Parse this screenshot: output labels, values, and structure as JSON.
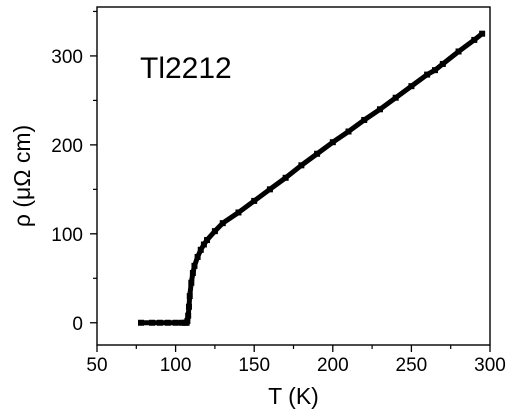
{
  "chart_data": {
    "type": "scatter",
    "title": "",
    "xlabel": "T (K)",
    "ylabel": "ρ (μΩ cm)",
    "xlim": [
      50,
      300
    ],
    "ylim": [
      -25,
      355
    ],
    "xticks": [
      50,
      100,
      150,
      200,
      250,
      300
    ],
    "yticks": [
      0,
      100,
      200,
      300
    ],
    "xtick_labels": [
      "50",
      "100",
      "150",
      "200",
      "250",
      "300"
    ],
    "ytick_labels": [
      "0",
      "100",
      "200",
      "300"
    ],
    "grid": false,
    "legend": "none",
    "annotations": [
      {
        "text": "Tl2212"
      }
    ],
    "series": [
      {
        "color": "#000000",
        "x": [
          78,
          85,
          90,
          95,
          100,
          104,
          106,
          107,
          107.5,
          108,
          108.5,
          109,
          110,
          111,
          112,
          114,
          116,
          118,
          120,
          125,
          130,
          140,
          150,
          160,
          170,
          180,
          190,
          200,
          210,
          220,
          230,
          240,
          250,
          260,
          265,
          270,
          280,
          290,
          295
        ],
        "y": [
          0,
          0,
          0,
          0,
          0,
          0,
          0,
          0,
          2,
          8,
          18,
          30,
          45,
          56,
          64,
          74,
          82,
          88,
          93,
          103,
          112,
          124,
          137,
          150,
          163,
          177,
          190,
          203,
          215,
          228,
          240,
          253,
          266,
          279,
          284,
          291,
          305,
          318,
          325
        ]
      }
    ]
  }
}
